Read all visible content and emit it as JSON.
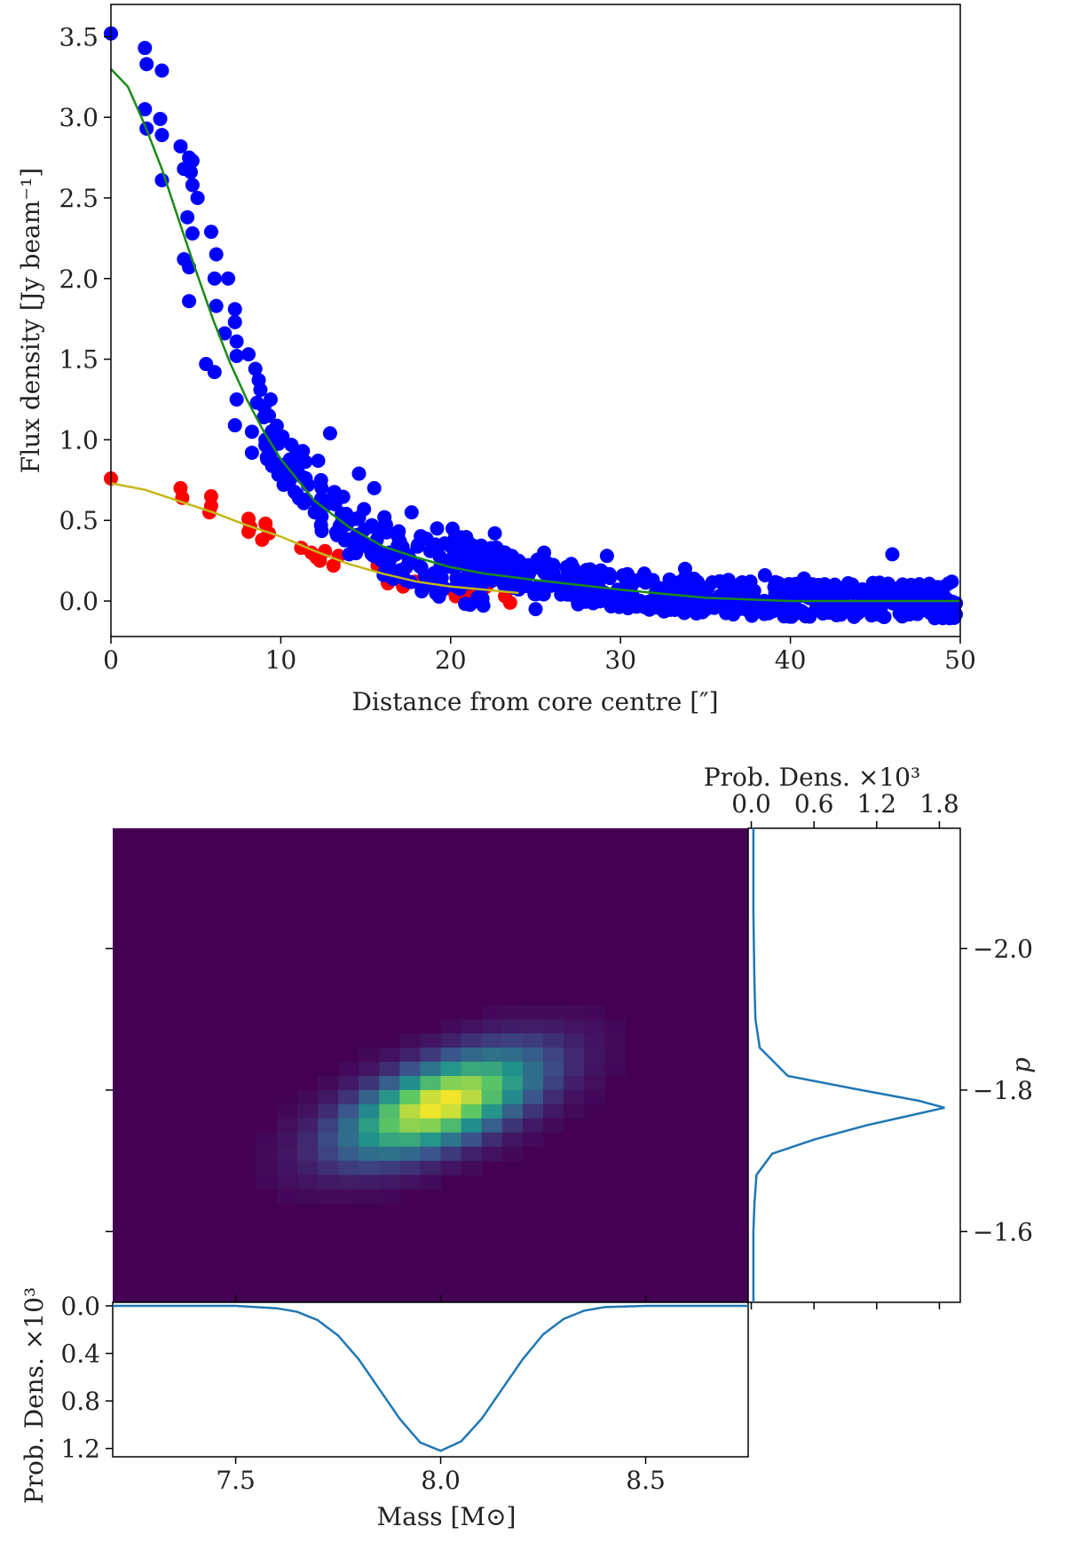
{
  "chart_data": [
    {
      "type": "scatter",
      "xlabel": "Distance from core centre [″]",
      "ylabel": "Flux density [Jy beam⁻¹]",
      "xlim": [
        0,
        50
      ],
      "ylim": [
        -0.22,
        3.7
      ],
      "xticks": [
        0,
        10,
        20,
        30,
        40,
        50
      ],
      "yticks": [
        0.0,
        0.5,
        1.0,
        1.5,
        2.0,
        2.5,
        3.0,
        3.5
      ],
      "xtick_labels": [
        "0",
        "10",
        "20",
        "30",
        "40",
        "50"
      ],
      "ytick_labels": [
        "0.0",
        "0.5",
        "1.0",
        "1.5",
        "2.0",
        "2.5",
        "3.0",
        "3.5"
      ],
      "series": [
        {
          "name": "blue data points",
          "color": "#0000ff",
          "points": [
            [
              0.0,
              3.52
            ],
            [
              2.0,
              3.43
            ],
            [
              2.1,
              3.33
            ],
            [
              3.0,
              3.29
            ],
            [
              2.0,
              3.05
            ],
            [
              2.9,
              2.99
            ],
            [
              2.1,
              2.93
            ],
            [
              3.0,
              2.89
            ],
            [
              4.1,
              2.82
            ],
            [
              4.6,
              2.75
            ],
            [
              4.8,
              2.73
            ],
            [
              4.3,
              2.68
            ],
            [
              4.7,
              2.66
            ],
            [
              3.0,
              2.61
            ],
            [
              4.8,
              2.58
            ],
            [
              5.1,
              2.5
            ],
            [
              4.5,
              2.38
            ],
            [
              4.8,
              2.28
            ],
            [
              5.9,
              2.29
            ],
            [
              6.2,
              2.15
            ],
            [
              4.3,
              2.12
            ],
            [
              4.6,
              2.07
            ],
            [
              6.1,
              2.0
            ],
            [
              6.9,
              2.0
            ],
            [
              4.6,
              1.86
            ],
            [
              6.2,
              1.83
            ],
            [
              7.3,
              1.81
            ],
            [
              7.3,
              1.73
            ],
            [
              6.7,
              1.66
            ],
            [
              7.4,
              1.61
            ],
            [
              7.4,
              1.52
            ],
            [
              8.1,
              1.53
            ],
            [
              8.5,
              1.44
            ],
            [
              5.6,
              1.47
            ],
            [
              6.1,
              1.42
            ],
            [
              8.7,
              1.37
            ],
            [
              8.8,
              1.31
            ],
            [
              9.4,
              1.25
            ],
            [
              7.4,
              1.25
            ],
            [
              8.6,
              1.23
            ],
            [
              7.3,
              1.09
            ],
            [
              9.0,
              1.14
            ],
            [
              8.3,
              1.05
            ],
            [
              9.1,
              1.0
            ],
            [
              10.1,
              1.02
            ],
            [
              8.3,
              0.92
            ],
            [
              9.2,
              0.88
            ],
            [
              10.4,
              0.85
            ],
            [
              11.3,
              0.93
            ],
            [
              12.9,
              1.04
            ],
            [
              12.2,
              0.87
            ],
            [
              10.8,
              0.79
            ],
            [
              11.6,
              0.72
            ],
            [
              12.4,
              0.7
            ],
            [
              14.6,
              0.79
            ],
            [
              15.5,
              0.7
            ],
            [
              13.2,
              0.6
            ],
            [
              14.9,
              0.57
            ],
            [
              16.1,
              0.52
            ],
            [
              15.4,
              0.46
            ],
            [
              17.7,
              0.55
            ],
            [
              16.9,
              0.4
            ],
            [
              19.2,
              0.45
            ],
            [
              18.8,
              0.31
            ],
            [
              20.4,
              0.36
            ],
            [
              21.0,
              0.25
            ],
            [
              22.6,
              0.42
            ],
            [
              23.2,
              0.3
            ],
            [
              24.1,
              0.18
            ],
            [
              25.5,
              0.3
            ],
            [
              26.2,
              0.1
            ],
            [
              27.1,
              0.23
            ],
            [
              28.4,
              0.12
            ],
            [
              29.2,
              0.28
            ],
            [
              30.6,
              0.05
            ],
            [
              31.4,
              0.17
            ],
            [
              32.3,
              0.08
            ],
            [
              33.8,
              0.2
            ],
            [
              35.1,
              0.02
            ],
            [
              36.2,
              0.12
            ],
            [
              37.3,
              0.06
            ],
            [
              38.5,
              0.16
            ],
            [
              39.6,
              0.04
            ],
            [
              40.8,
              0.14
            ],
            [
              42.1,
              0.0
            ],
            [
              43.4,
              0.11
            ],
            [
              44.7,
              0.05
            ],
            [
              46.0,
              0.29
            ],
            [
              47.1,
              0.1
            ],
            [
              48.3,
              0.03
            ],
            [
              49.5,
              0.12
            ],
            [
              25.0,
              -0.05
            ],
            [
              27.5,
              -0.02
            ],
            [
              34.3,
              -0.04
            ],
            [
              38.1,
              -0.06
            ],
            [
              41.5,
              -0.05
            ],
            [
              45.2,
              -0.03
            ],
            [
              49.0,
              -0.05
            ],
            [
              19.6,
              0.22
            ],
            [
              21.8,
              0.15
            ],
            [
              23.7,
              0.09
            ],
            [
              16.4,
              0.3
            ],
            [
              14.0,
              0.38
            ],
            [
              12.0,
              0.55
            ]
          ]
        },
        {
          "name": "red data points",
          "color": "#ff0000",
          "points": [
            [
              0.0,
              0.76
            ],
            [
              4.1,
              0.7
            ],
            [
              4.2,
              0.64
            ],
            [
              5.9,
              0.65
            ],
            [
              5.9,
              0.59
            ],
            [
              5.8,
              0.55
            ],
            [
              8.1,
              0.51
            ],
            [
              8.2,
              0.46
            ],
            [
              8.1,
              0.43
            ],
            [
              9.1,
              0.48
            ],
            [
              9.3,
              0.42
            ],
            [
              8.9,
              0.38
            ],
            [
              11.2,
              0.33
            ],
            [
              11.8,
              0.3
            ],
            [
              12.3,
              0.25
            ],
            [
              12.6,
              0.31
            ],
            [
              13.1,
              0.22
            ],
            [
              13.4,
              0.28
            ],
            [
              12.1,
              0.27
            ],
            [
              15.7,
              0.22
            ],
            [
              16.1,
              0.17
            ],
            [
              16.3,
              0.11
            ],
            [
              17.0,
              0.13
            ],
            [
              17.2,
              0.09
            ],
            [
              16.8,
              0.15
            ],
            [
              17.9,
              0.12
            ],
            [
              17.3,
              0.2
            ],
            [
              20.1,
              0.07
            ],
            [
              20.3,
              0.03
            ],
            [
              21.0,
              0.06
            ],
            [
              21.3,
              0.02
            ],
            [
              21.8,
              0.05
            ],
            [
              22.1,
              0.09
            ],
            [
              23.2,
              0.03
            ],
            [
              23.5,
              -0.01
            ],
            [
              20.6,
              0.1
            ]
          ]
        },
        {
          "name": "green fit",
          "color": "#1a8a1a",
          "line_points": [
            [
              0,
              3.3
            ],
            [
              1,
              3.19
            ],
            [
              2,
              2.95
            ],
            [
              3,
              2.68
            ],
            [
              4,
              2.36
            ],
            [
              5,
              2.05
            ],
            [
              6,
              1.75
            ],
            [
              7,
              1.48
            ],
            [
              8,
              1.25
            ],
            [
              9,
              1.05
            ],
            [
              10,
              0.88
            ],
            [
              12,
              0.62
            ],
            [
              14,
              0.46
            ],
            [
              16,
              0.34
            ],
            [
              18,
              0.27
            ],
            [
              20,
              0.21
            ],
            [
              22,
              0.17
            ],
            [
              25,
              0.13
            ],
            [
              30,
              0.07
            ],
            [
              35,
              0.02
            ],
            [
              40,
              0.0
            ],
            [
              45,
              0.0
            ],
            [
              50,
              0.0
            ]
          ]
        },
        {
          "name": "yellow fit",
          "color": "#c4b817",
          "line_points": [
            [
              0,
              0.73
            ],
            [
              2,
              0.69
            ],
            [
              4,
              0.62
            ],
            [
              6,
              0.55
            ],
            [
              8,
              0.47
            ],
            [
              10,
              0.4
            ],
            [
              12,
              0.31
            ],
            [
              14,
              0.23
            ],
            [
              16,
              0.17
            ],
            [
              18,
              0.12
            ],
            [
              20,
              0.09
            ],
            [
              22,
              0.07
            ],
            [
              24,
              0.05
            ]
          ]
        }
      ]
    },
    {
      "type": "heatmap",
      "description_colors": {
        "background": "#440154",
        "peak": "#fde725"
      },
      "xlim": [
        7.2,
        8.75
      ],
      "ylim": [
        -1.5,
        -2.17
      ],
      "cell_width_mass": 0.05,
      "cell_height_p": 0.02,
      "center_mass": 8.0,
      "center_p": -1.78,
      "sigma_mass": 0.16,
      "sigma_p": 0.05,
      "correlation": -0.6,
      "right_yticks": [
        -2.0,
        -1.8,
        -1.6
      ],
      "right_ytick_labels": [
        "−2.0",
        "−1.8",
        "−1.6"
      ],
      "right_ylabel": "p"
    },
    {
      "type": "line",
      "name": "right marginal (p)",
      "xlabel_top": "Prob. Dens. ×10³",
      "xticks": [
        0.0,
        0.6,
        1.2,
        1.8
      ],
      "xtick_labels": [
        "0.0",
        "0.6",
        "1.2",
        "1.8"
      ],
      "xlim": [
        -0.03,
        2.0
      ],
      "points": [
        [
          0.02,
          -2.17
        ],
        [
          0.02,
          -2.05
        ],
        [
          0.03,
          -1.95
        ],
        [
          0.04,
          -1.9
        ],
        [
          0.08,
          -1.86
        ],
        [
          0.35,
          -1.82
        ],
        [
          1.05,
          -1.8
        ],
        [
          1.6,
          -1.785
        ],
        [
          1.85,
          -1.775
        ],
        [
          1.1,
          -1.75
        ],
        [
          0.6,
          -1.73
        ],
        [
          0.2,
          -1.71
        ],
        [
          0.05,
          -1.68
        ],
        [
          0.03,
          -1.64
        ],
        [
          0.02,
          -1.6
        ],
        [
          0.02,
          -1.5
        ]
      ]
    },
    {
      "type": "line",
      "name": "bottom marginal (mass)",
      "xlabel": "Mass [M⊙]",
      "ylabel": "Prob. Dens. ×10³",
      "xticks": [
        7.5,
        8.0,
        8.5
      ],
      "xtick_labels": [
        "7.5",
        "8.0",
        "8.5"
      ],
      "yticks": [
        0.0,
        0.4,
        0.8,
        1.2
      ],
      "ytick_labels": [
        "0.0",
        "0.4",
        "0.8",
        "1.2"
      ],
      "xlim": [
        7.2,
        8.75
      ],
      "ylim": [
        1.27,
        -0.03
      ],
      "points": [
        [
          7.2,
          0.0
        ],
        [
          7.5,
          0.0
        ],
        [
          7.6,
          0.02
        ],
        [
          7.65,
          0.05
        ],
        [
          7.7,
          0.12
        ],
        [
          7.75,
          0.25
        ],
        [
          7.8,
          0.45
        ],
        [
          7.85,
          0.7
        ],
        [
          7.9,
          0.95
        ],
        [
          7.95,
          1.15
        ],
        [
          8.0,
          1.22
        ],
        [
          8.05,
          1.14
        ],
        [
          8.1,
          0.95
        ],
        [
          8.15,
          0.7
        ],
        [
          8.2,
          0.45
        ],
        [
          8.25,
          0.24
        ],
        [
          8.3,
          0.11
        ],
        [
          8.35,
          0.04
        ],
        [
          8.4,
          0.01
        ],
        [
          8.5,
          0.0
        ],
        [
          8.75,
          0.0
        ]
      ]
    }
  ]
}
